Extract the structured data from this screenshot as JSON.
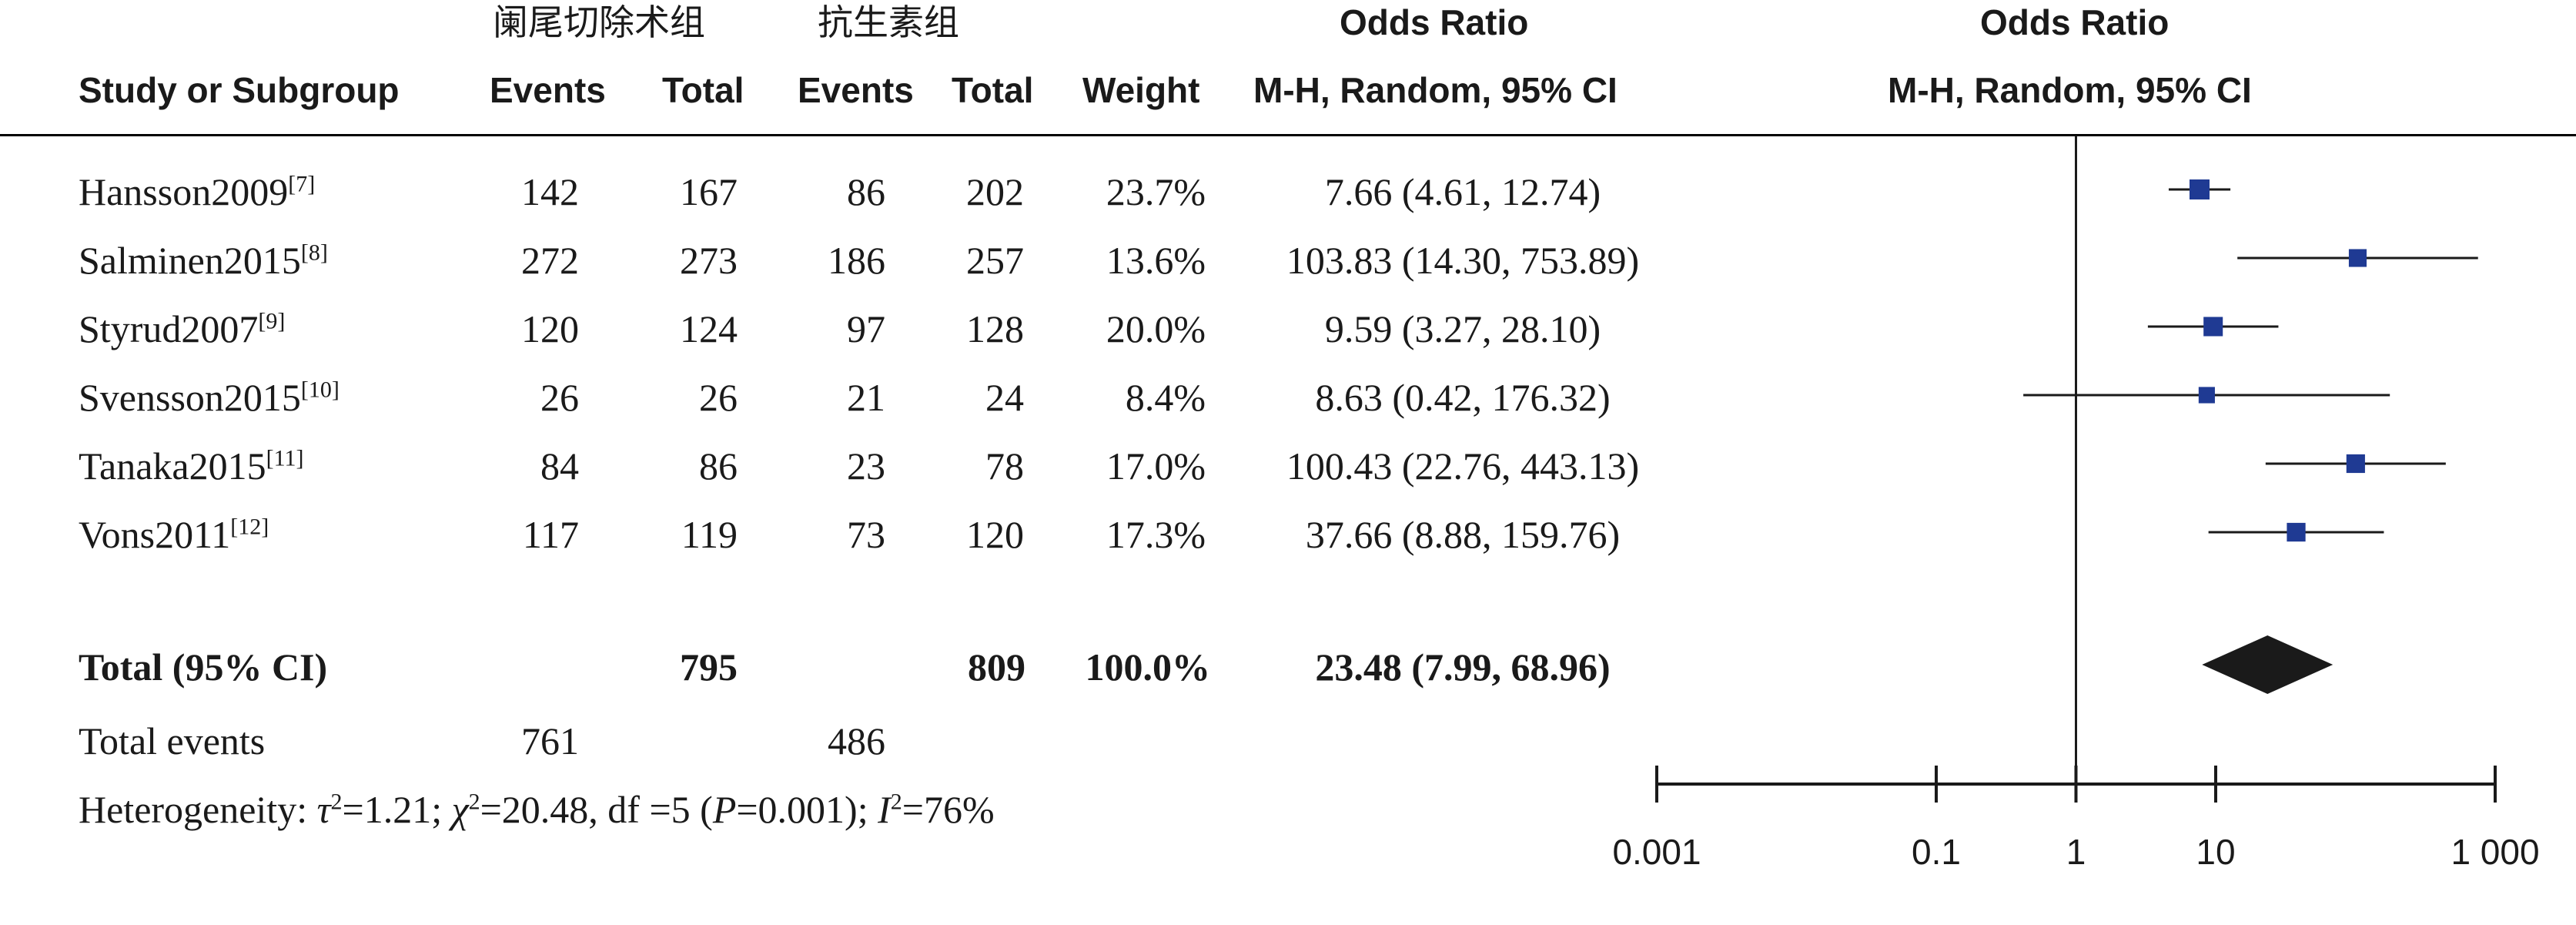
{
  "header": {
    "group1": "阑尾切除术组",
    "group2": "抗生素组",
    "study": "Study or Subgroup",
    "events1": "Events",
    "total1": "Total",
    "events2": "Events",
    "total2": "Total",
    "weight": "Weight",
    "or_title": "Odds Ratio",
    "or_method": "M-H, Random, 95% CI",
    "plot_title": "Odds Ratio",
    "plot_method": "M-H, Random, 95% CI"
  },
  "rows": [
    {
      "study": "Hansson2009",
      "ref": "[7]",
      "events1": "142",
      "total1": "167",
      "events2": "86",
      "total2": "202",
      "weight": "23.7%",
      "ci": "7.66 (4.61, 12.74)"
    },
    {
      "study": "Salminen2015",
      "ref": "[8]",
      "events1": "272",
      "total1": "273",
      "events2": "186",
      "total2": "257",
      "weight": "13.6%",
      "ci": "103.83 (14.30, 753.89)"
    },
    {
      "study": "Styrud2007",
      "ref": "[9]",
      "events1": "120",
      "total1": "124",
      "events2": "97",
      "total2": "128",
      "weight": "20.0%",
      "ci": "9.59 (3.27, 28.10)"
    },
    {
      "study": "Svensson2015",
      "ref": "[10]",
      "events1": "26",
      "total1": "26",
      "events2": "21",
      "total2": "24",
      "weight": "8.4%",
      "ci": "8.63 (0.42, 176.32)"
    },
    {
      "study": "Tanaka2015",
      "ref": "[11]",
      "events1": "84",
      "total1": "86",
      "events2": "23",
      "total2": "78",
      "weight": "17.0%",
      "ci": "100.43 (22.76, 443.13)"
    },
    {
      "study": "Vons2011",
      "ref": "[12]",
      "events1": "117",
      "total1": "119",
      "events2": "73",
      "total2": "120",
      "weight": "17.3%",
      "ci": "37.66 (8.88, 159.76)"
    }
  ],
  "total": {
    "label": "Total (95% CI)",
    "total1": "795",
    "total2": "809",
    "weight": "100.0%",
    "ci": "23.48 (7.99, 68.96)"
  },
  "total_events": {
    "label": "Total events",
    "events1": "761",
    "events2": "486"
  },
  "heterogeneity": {
    "prefix": "Heterogeneity: ",
    "tau_sym": "τ",
    "tau_val": "=1.21; ",
    "chi_sym": "χ",
    "chi_val": "=20.48, df =5 (",
    "p_sym": "P",
    "p_val": "=0.001); ",
    "i_sym": "I",
    "i_val": "=76%",
    "sq": "2"
  },
  "chart_data": {
    "type": "forest",
    "x_scale": "log",
    "xlim": [
      0.001,
      1000
    ],
    "x_ticks": [
      "0.001",
      "0.1",
      "1",
      "10",
      "1 000"
    ],
    "null_line": 1,
    "marker_color": "#1f3a93",
    "diamond_color": "#1a1a1a",
    "studies": [
      {
        "or": 7.66,
        "lo": 4.61,
        "hi": 12.74,
        "weight": 23.7
      },
      {
        "or": 103.83,
        "lo": 14.3,
        "hi": 753.89,
        "weight": 13.6
      },
      {
        "or": 9.59,
        "lo": 3.27,
        "hi": 28.1,
        "weight": 20.0
      },
      {
        "or": 8.63,
        "lo": 0.42,
        "hi": 176.32,
        "weight": 8.4
      },
      {
        "or": 100.43,
        "lo": 22.76,
        "hi": 443.13,
        "weight": 17.0
      },
      {
        "or": 37.66,
        "lo": 8.88,
        "hi": 159.76,
        "weight": 17.3
      }
    ],
    "pooled": {
      "or": 23.48,
      "lo": 7.99,
      "hi": 68.96
    }
  }
}
